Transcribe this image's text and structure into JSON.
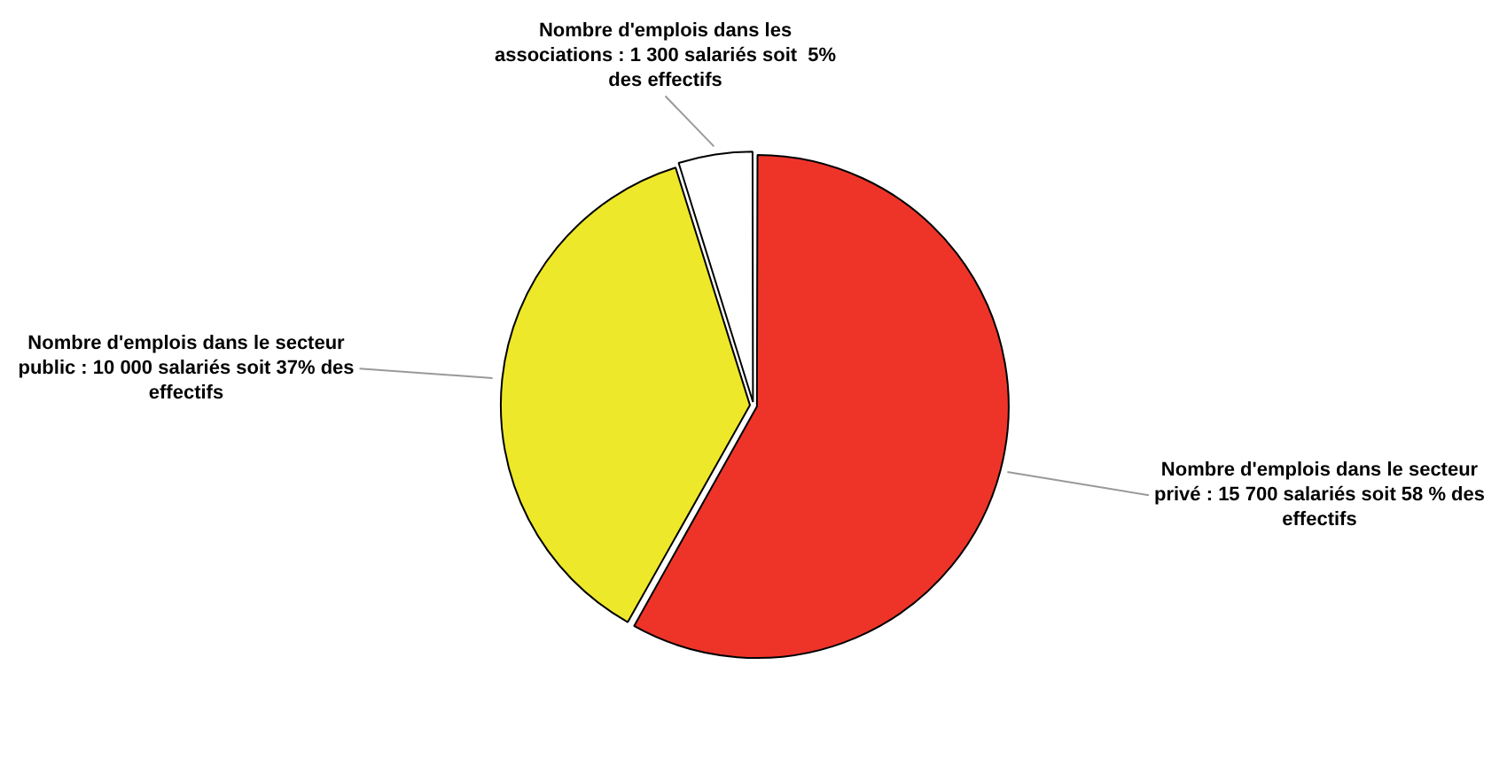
{
  "chart_data": {
    "type": "pie",
    "categories": [
      "Nombre d'emplois dans le secteur privé : 15 700 salariés soit 58 % des effectifs",
      "Nombre d'emplois dans le secteur public : 10 000 salariés soit 37% des effectifs",
      "Nombre d'emplois dans les associations : 1 300 salariés soit  5% des effectifs"
    ],
    "values": [
      15700,
      10000,
      1300
    ],
    "colors": [
      "#ee3429",
      "#eee82a",
      "#ffffff"
    ],
    "legend": false
  }
}
